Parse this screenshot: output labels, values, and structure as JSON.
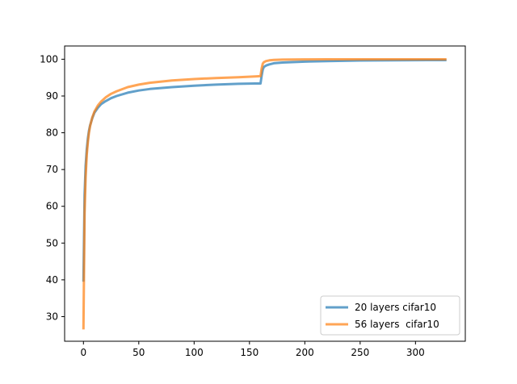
{
  "chart_data": {
    "type": "line",
    "xlim": [
      -17,
      345
    ],
    "ylim": [
      23.3,
      103.6
    ],
    "x_ticks": [
      0,
      50,
      100,
      150,
      200,
      250,
      300
    ],
    "y_ticks": [
      30,
      40,
      50,
      60,
      70,
      80,
      90,
      100
    ],
    "grid": false,
    "legend_position": "bottom-right",
    "series": [
      {
        "name": "20 layers cifar10",
        "color": "#1f77b4",
        "x": [
          0,
          1,
          2,
          3,
          4,
          5,
          6,
          8,
          10,
          13,
          16,
          20,
          25,
          30,
          40,
          50,
          60,
          80,
          100,
          120,
          140,
          155,
          160,
          161,
          162,
          163,
          165,
          168,
          172,
          180,
          200,
          220,
          250,
          280,
          310,
          328
        ],
        "y": [
          39.5,
          63,
          71,
          75.5,
          78.5,
          80.5,
          82,
          84,
          85.5,
          86.8,
          87.8,
          88.6,
          89.4,
          90,
          90.9,
          91.5,
          91.9,
          92.4,
          92.8,
          93.1,
          93.3,
          93.4,
          93.4,
          95.5,
          97.2,
          97.9,
          98.3,
          98.6,
          98.9,
          99.1,
          99.35,
          99.5,
          99.65,
          99.7,
          99.75,
          99.75
        ]
      },
      {
        "name": "56 layers  cifar10",
        "color": "#ff7f0e",
        "x": [
          0,
          1,
          2,
          3,
          4,
          5,
          6,
          8,
          10,
          13,
          16,
          20,
          25,
          30,
          40,
          50,
          60,
          80,
          100,
          120,
          140,
          155,
          160,
          161,
          162,
          163,
          165,
          168,
          172,
          180,
          200,
          220,
          250,
          280,
          310,
          328
        ],
        "y": [
          26.5,
          58,
          68,
          74,
          77.5,
          80,
          81.8,
          84.2,
          85.8,
          87.4,
          88.5,
          89.6,
          90.6,
          91.3,
          92.4,
          93.1,
          93.6,
          94.2,
          94.6,
          94.9,
          95.1,
          95.3,
          95.4,
          97.5,
          98.8,
          99.2,
          99.5,
          99.7,
          99.8,
          99.9,
          99.95,
          99.97,
          99.98,
          99.98,
          99.98,
          99.98
        ]
      }
    ]
  }
}
